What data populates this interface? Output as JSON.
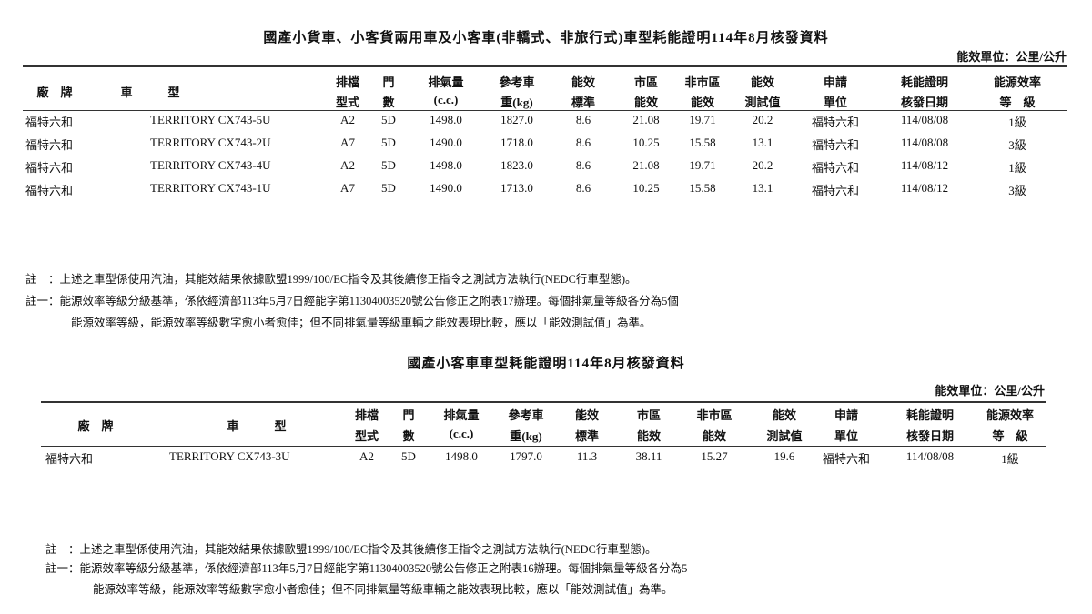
{
  "tables": [
    {
      "title": "國產小貨車、小客貨兩用車及小客車(非轎式、非旅行式)車型耗能證明114年8月核發資料",
      "unit": "能效單位：公里/公升",
      "headers": [
        [
          "廠　牌",
          ""
        ],
        [
          "車　　　型",
          ""
        ],
        [
          "排檔",
          "型式"
        ],
        [
          "門",
          "數"
        ],
        [
          "排氣量",
          "(c.c.)"
        ],
        [
          "參考車",
          "重(kg)"
        ],
        [
          "能效",
          "標準"
        ],
        [
          "市區",
          "能效"
        ],
        [
          "非市區",
          "能效"
        ],
        [
          "能效",
          "測試值"
        ],
        [
          "申請",
          "單位"
        ],
        [
          "耗能證明",
          "核發日期"
        ],
        [
          "能源效率",
          "等　級"
        ]
      ],
      "rows": [
        [
          "福特六和",
          "TERRITORY CX743-5U",
          "A2",
          "5D",
          "1498.0",
          "1827.0",
          "8.6",
          "21.08",
          "19.71",
          "20.2",
          "福特六和",
          "114/08/08",
          "1級"
        ],
        [
          "福特六和",
          "TERRITORY CX743-2U",
          "A7",
          "5D",
          "1490.0",
          "1718.0",
          "8.6",
          "10.25",
          "15.58",
          "13.1",
          "福特六和",
          "114/08/08",
          "3級"
        ],
        [
          "福特六和",
          "TERRITORY CX743-4U",
          "A2",
          "5D",
          "1498.0",
          "1823.0",
          "8.6",
          "21.08",
          "19.71",
          "20.2",
          "福特六和",
          "114/08/12",
          "1級"
        ],
        [
          "福特六和",
          "TERRITORY CX743-1U",
          "A7",
          "5D",
          "1490.0",
          "1713.0",
          "8.6",
          "10.25",
          "15.58",
          "13.1",
          "福特六和",
          "114/08/12",
          "3級"
        ]
      ],
      "notes": [
        "註　：上述之車型係使用汽油，其能效結果依據歐盟1999/100/EC指令及其後續修正指令之測試方法執行(NEDC行車型態)。",
        "註一：能源效率等級分級基準，係依經濟部113年5月7日經能字第11304003520號公告修正之附表17辦理。每個排氣量等級各分為5個",
        "能源效率等級，能源效率等級數字愈小者愈佳；但不同排氣量等級車輛之能效表現比較，應以「能效測試值」為準。"
      ]
    },
    {
      "title": "國產小客車車型耗能證明114年8月核發資料",
      "unit": "能效單位：公里/公升",
      "headers": [
        [
          "廠　牌",
          ""
        ],
        [
          "車　　　型",
          ""
        ],
        [
          "排檔",
          "型式"
        ],
        [
          "門",
          "數"
        ],
        [
          "排氣量",
          "(c.c.)"
        ],
        [
          "參考車",
          "重(kg)"
        ],
        [
          "能效",
          "標準"
        ],
        [
          "市區",
          "能效"
        ],
        [
          "非市區",
          "能效"
        ],
        [
          "能效",
          "測試值"
        ],
        [
          "申請",
          "單位"
        ],
        [
          "耗能證明",
          "核發日期"
        ],
        [
          "能源效率",
          "等　級"
        ]
      ],
      "rows": [
        [
          "福特六和",
          "TERRITORY CX743-3U",
          "A2",
          "5D",
          "1498.0",
          "1797.0",
          "11.3",
          "38.11",
          "15.27",
          "19.6",
          "福特六和",
          "114/08/08",
          "1級"
        ]
      ],
      "notes": [
        "註　：上述之車型係使用汽油，其能效結果依據歐盟1999/100/EC指令及其後續修正指令之測試方法執行(NEDC行車型態)。",
        "註一：能源效率等級分級基準，係依經濟部113年5月7日經能字第11304003520號公告修正之附表16辦理。每個排氣量等級各分為5",
        "能源效率等級，能源效率等級數字愈小者愈佳；但不同排氣量等級車輛之能效表現比較，應以「能效測試值」為準。"
      ]
    }
  ]
}
